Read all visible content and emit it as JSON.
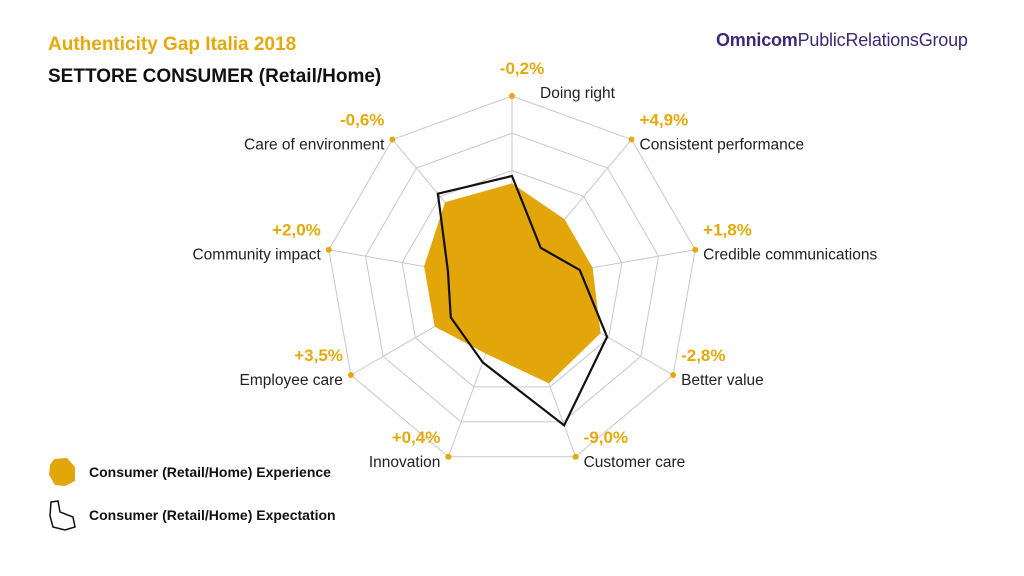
{
  "header": {
    "title": "Authenticity Gap Italia 2018",
    "subtitle": "SETTORE CONSUMER (Retail/Home)",
    "brand_bold": "Omnicom",
    "brand_rest": "PublicRelationsGroup"
  },
  "colors": {
    "accent": "#e3a90d",
    "experience_fill": "#e2a60a",
    "expectation_stroke": "#111111",
    "grid": "#c8c8c8",
    "brand": "#3b2a7a"
  },
  "chart_data": {
    "type": "radar",
    "title": "Authenticity Gap Italia 2018",
    "subtitle": "SETTORE CONSUMER (Retail/Home)",
    "rings": 5,
    "axes": [
      {
        "label": "Doing right",
        "gap": "-0,2%"
      },
      {
        "label": "Consistent performance",
        "gap": "+4,9%"
      },
      {
        "label": "Credible communications",
        "gap": "+1,8%"
      },
      {
        "label": "Better value",
        "gap": "-2,8%"
      },
      {
        "label": "Customer care",
        "gap": "-9,0%"
      },
      {
        "label": "Innovation",
        "gap": "+0,4%"
      },
      {
        "label": "Employee care",
        "gap": "+3,5%"
      },
      {
        "label": "Community impact",
        "gap": "+2,0%"
      },
      {
        "label": "Care of environment",
        "gap": "-0,6%"
      }
    ],
    "series": [
      {
        "name": "Consumer (Retail/Home) Experience",
        "style": "filled",
        "values": [
          0.53,
          0.44,
          0.44,
          0.55,
          0.58,
          0.41,
          0.48,
          0.48,
          0.56
        ]
      },
      {
        "name": "Consumer (Retail/Home) Expectation",
        "style": "outline",
        "values": [
          0.57,
          0.24,
          0.37,
          0.59,
          0.82,
          0.46,
          0.38,
          0.35,
          0.62
        ]
      }
    ],
    "legend": "bottom-left"
  }
}
